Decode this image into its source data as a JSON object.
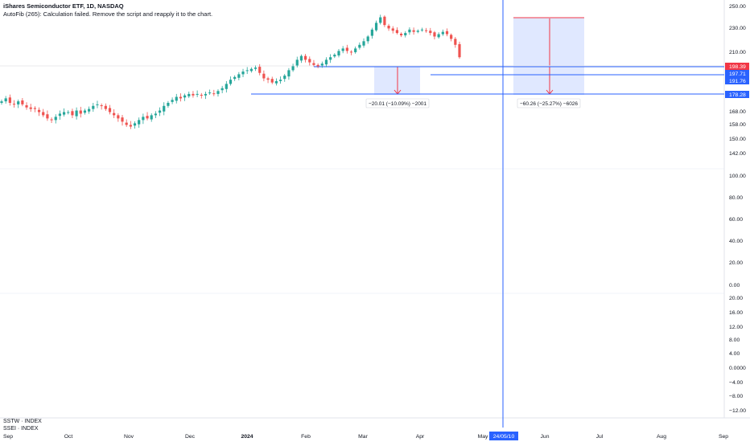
{
  "header": {
    "title": "iShares Semiconductor ETF, 1D, NASDAQ",
    "note": "AutoFib (265): Calculation failed. Remove the script and reapply it to the chart."
  },
  "panes": {
    "lower_label_1": "SSTW · INDEX",
    "lower_label_2": "SSEI · INDEX"
  },
  "colors": {
    "up": "#26a69a",
    "down": "#ef5350",
    "blue_line": "#2962ff",
    "measure_fill": "#dbe4ff",
    "red_tag": "#f23645"
  },
  "chart_data": {
    "type": "candlestick",
    "title": "iShares Semiconductor ETF, 1D, NASDAQ",
    "price_axis_ticks": [
      "250.00",
      "230.00",
      "210.00",
      "198.39",
      "197.71",
      "191.76",
      "178.28",
      "168.00",
      "158.00",
      "150.00",
      "142.00",
      "100.00",
      "80.00",
      "60.00",
      "40.00",
      "20.00",
      "0.00",
      "20.00",
      "16.00",
      "12.00",
      "8.00",
      "4.00",
      "0.0000",
      "−4.00",
      "−8.00",
      "−12.00"
    ],
    "x_axis_ticks": [
      "Sep",
      "Oct",
      "Nov",
      "Dec",
      "2024",
      "Feb",
      "Mar",
      "Apr",
      "May",
      "24/05/10",
      "Jun",
      "Jul",
      "Aug",
      "Sep"
    ],
    "vertical_line_date": "24/05/10",
    "price_tags": [
      {
        "value": "198.39",
        "color": "red"
      },
      {
        "value": "197.71",
        "color": "blue"
      },
      {
        "value": "191.76",
        "color": "blue"
      },
      {
        "value": "178.28",
        "color": "blue"
      }
    ],
    "horizontal_lines": [
      198.39,
      191.76,
      178.28
    ],
    "measurements": [
      {
        "label": "−20.01 (−10.09%) −2001",
        "from": 198.39,
        "to": 178.38
      },
      {
        "label": "−60.26 (−25.27%) −6026",
        "from": 238.5,
        "to": 178.28
      }
    ],
    "approx_closes": [
      173,
      175,
      172,
      171,
      173,
      171,
      169,
      168,
      168,
      166,
      164,
      162,
      161,
      163,
      165,
      166,
      166,
      164,
      167,
      165,
      167,
      168,
      170,
      171,
      170,
      168,
      166,
      164,
      162,
      160,
      158,
      157,
      159,
      161,
      163,
      162,
      164,
      165,
      167,
      170,
      172,
      174,
      176,
      175,
      177,
      178,
      177,
      178,
      177,
      178,
      179,
      178,
      180,
      182,
      185,
      188,
      190,
      192,
      194,
      195,
      196,
      197,
      193,
      189,
      188,
      186,
      187,
      188,
      191,
      195,
      198,
      203,
      206,
      203,
      201,
      199,
      198,
      200,
      203,
      205,
      207,
      210,
      212,
      210,
      209,
      212,
      215,
      218,
      222,
      228,
      234,
      239,
      232,
      229,
      227,
      225,
      223,
      225,
      228,
      226,
      227,
      228,
      227,
      225,
      222,
      224,
      226,
      224,
      220,
      215,
      205
    ]
  }
}
